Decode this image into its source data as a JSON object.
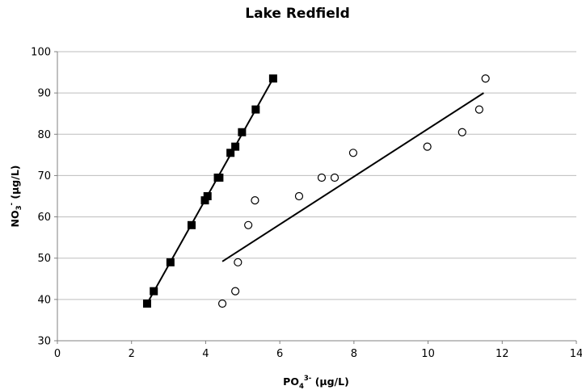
{
  "chart_data": {
    "type": "scatter",
    "title": "Lake Redfield",
    "xlabel": {
      "base": "PO",
      "sub": "4",
      "sup": "3-",
      "rest": " (µg/L)"
    },
    "ylabel": {
      "base": "NO",
      "sub": "3",
      "sup": "-",
      "rest": " (µg/L)"
    },
    "xlim": [
      0,
      14
    ],
    "ylim": [
      30,
      100
    ],
    "xticks": [
      "0",
      "2",
      "4",
      "6",
      "8",
      "10",
      "12",
      "14"
    ],
    "yticks": [
      "30",
      "40",
      "50",
      "60",
      "70",
      "80",
      "90",
      "100"
    ],
    "grid": "horizontal",
    "legend": "none",
    "series": [
      {
        "marker": "filled-square",
        "color": "#000000",
        "points": [
          [
            2.42,
            39
          ],
          [
            2.6,
            42
          ],
          [
            3.05,
            49
          ],
          [
            3.62,
            58
          ],
          [
            3.98,
            64
          ],
          [
            4.05,
            65
          ],
          [
            4.33,
            69.5
          ],
          [
            4.37,
            69.5
          ],
          [
            4.67,
            75.5
          ],
          [
            4.8,
            77
          ],
          [
            4.98,
            80.5
          ],
          [
            5.35,
            86
          ],
          [
            5.82,
            93.5
          ]
        ],
        "trendline": [
          [
            2.42,
            39
          ],
          [
            5.82,
            93.5
          ]
        ]
      },
      {
        "marker": "open-circle",
        "color": "#000000",
        "points": [
          [
            4.45,
            39
          ],
          [
            4.8,
            42
          ],
          [
            4.87,
            49
          ],
          [
            5.15,
            58
          ],
          [
            5.33,
            64
          ],
          [
            6.52,
            65
          ],
          [
            7.13,
            69.5
          ],
          [
            7.48,
            69.5
          ],
          [
            7.98,
            75.5
          ],
          [
            9.98,
            77
          ],
          [
            10.92,
            80.5
          ],
          [
            11.38,
            86
          ],
          [
            11.55,
            93.5
          ]
        ],
        "trendline": [
          [
            4.45,
            49.2
          ],
          [
            11.5,
            90
          ]
        ]
      }
    ]
  }
}
